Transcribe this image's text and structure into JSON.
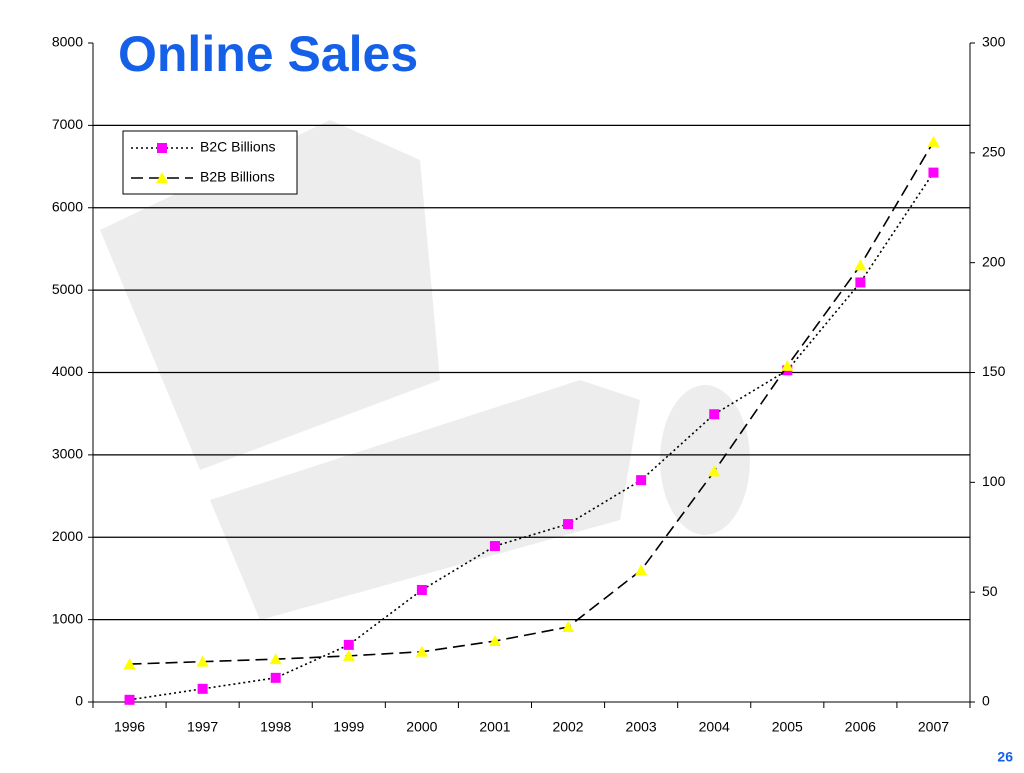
{
  "chart_data": {
    "type": "line",
    "title": "Online Sales",
    "slide_number": "26",
    "categories": [
      "1996",
      "1997",
      "1998",
      "1999",
      "2000",
      "2001",
      "2002",
      "2003",
      "2004",
      "2005",
      "2006",
      "2007"
    ],
    "series": [
      {
        "name": "B2C Billions",
        "color": "#000000",
        "marker_color": "#ff00ff",
        "marker": "square",
        "dash": "dotted",
        "axis": "y2",
        "values": [
          1,
          6,
          11,
          26,
          51,
          71,
          81,
          101,
          131,
          151,
          191,
          241
        ]
      },
      {
        "name": "B2B Billions",
        "color": "#000000",
        "marker_color": "#ffff00",
        "marker": "triangle",
        "dash": "dashed",
        "values": [
          460,
          490,
          520,
          560,
          610,
          740,
          910,
          1600,
          2800,
          4080,
          5300,
          6800
        ]
      }
    ],
    "ylim": [
      0,
      8000
    ],
    "yticks": [
      0,
      1000,
      2000,
      3000,
      4000,
      5000,
      6000,
      7000,
      8000
    ],
    "y2lim": [
      0,
      300
    ],
    "y2ticks": [
      0,
      50,
      100,
      150,
      200,
      250,
      300
    ],
    "grid": true,
    "legend": "upper left"
  }
}
